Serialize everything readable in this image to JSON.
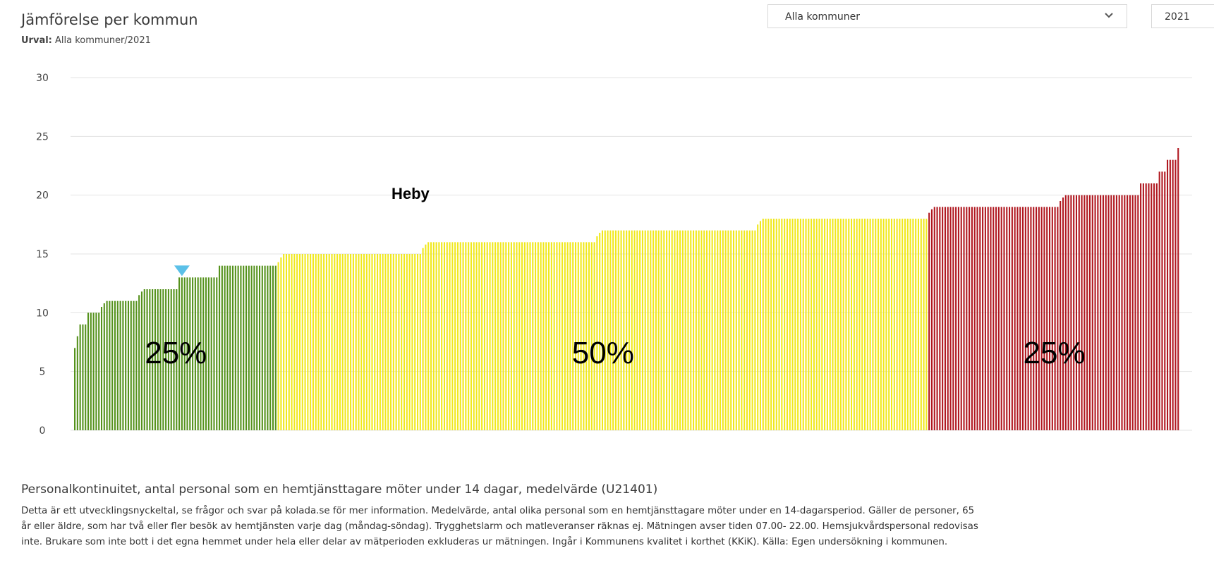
{
  "header": {
    "title": "Jämförelse per kommun",
    "urval_label": "Urval:",
    "urval_value": "Alla kommuner/2021"
  },
  "filters": {
    "municipality_select": "Alla kommuner",
    "year_select": "2021"
  },
  "chart_data": {
    "type": "bar",
    "ylim": [
      0,
      30
    ],
    "yticks": [
      0,
      5,
      10,
      15,
      20,
      25,
      30
    ],
    "grid": true,
    "colors": {
      "low": "#55921c",
      "mid": "#f0e81c",
      "high": "#b0171f",
      "marker": "#5bc0e8"
    },
    "groups": [
      {
        "label": "25%",
        "color_key": "low",
        "values": [
          7,
          8,
          9,
          9,
          9,
          10,
          10,
          10,
          10,
          10,
          10.5,
          10.8,
          11,
          11,
          11,
          11,
          11,
          11,
          11,
          11,
          11,
          11,
          11,
          11,
          11.5,
          11.8,
          12,
          12,
          12,
          12,
          12,
          12,
          12,
          12,
          12,
          12,
          12,
          12,
          12,
          13,
          13,
          13,
          13,
          13,
          13,
          13,
          13,
          13,
          13,
          13,
          13,
          13,
          13,
          13,
          14,
          14,
          14,
          14,
          14,
          14,
          14,
          14,
          14,
          14,
          14,
          14,
          14,
          14,
          14,
          14,
          14,
          14,
          14,
          14,
          14,
          14
        ]
      },
      {
        "label": "50%",
        "color_key": "mid",
        "values": [
          14.3,
          14.7,
          15,
          15,
          15,
          15,
          15,
          15,
          15,
          15,
          15,
          15,
          15,
          15,
          15,
          15,
          15,
          15,
          15,
          15,
          15,
          15,
          15,
          15,
          15,
          15,
          15,
          15,
          15,
          15,
          15,
          15,
          15,
          15,
          15,
          15,
          15,
          15,
          15,
          15,
          15,
          15,
          15,
          15,
          15,
          15,
          15,
          15,
          15,
          15,
          15,
          15,
          15,
          15,
          15.5,
          15.8,
          16,
          16,
          16,
          16,
          16,
          16,
          16,
          16,
          16,
          16,
          16,
          16,
          16,
          16,
          16,
          16,
          16,
          16,
          16,
          16,
          16,
          16,
          16,
          16,
          16,
          16,
          16,
          16,
          16,
          16,
          16,
          16,
          16,
          16,
          16,
          16,
          16,
          16,
          16,
          16,
          16,
          16,
          16,
          16,
          16,
          16,
          16,
          16,
          16,
          16,
          16,
          16,
          16,
          16,
          16,
          16,
          16,
          16,
          16,
          16,
          16,
          16,
          16,
          16.5,
          16.8,
          17,
          17,
          17,
          17,
          17,
          17,
          17,
          17,
          17,
          17,
          17,
          17,
          17,
          17,
          17,
          17,
          17,
          17,
          17,
          17,
          17,
          17,
          17,
          17,
          17,
          17,
          17,
          17,
          17,
          17,
          17,
          17,
          17,
          17,
          17,
          17,
          17,
          17,
          17,
          17,
          17,
          17,
          17,
          17,
          17,
          17,
          17,
          17,
          17,
          17,
          17,
          17,
          17,
          17,
          17,
          17,
          17,
          17,
          17.5,
          17.8,
          18,
          18,
          18,
          18,
          18,
          18,
          18,
          18,
          18,
          18,
          18,
          18,
          18,
          18,
          18,
          18,
          18,
          18,
          18,
          18,
          18,
          18,
          18,
          18,
          18,
          18,
          18,
          18,
          18,
          18,
          18,
          18,
          18,
          18,
          18,
          18,
          18,
          18,
          18,
          18,
          18,
          18,
          18,
          18,
          18,
          18,
          18,
          18,
          18,
          18,
          18,
          18,
          18,
          18,
          18,
          18,
          18,
          18,
          18,
          18,
          18,
          18
        ]
      },
      {
        "label": "25%",
        "color_key": "high",
        "values": [
          18.5,
          18.8,
          19,
          19,
          19,
          19,
          19,
          19,
          19,
          19,
          19,
          19,
          19,
          19,
          19,
          19,
          19,
          19,
          19,
          19,
          19,
          19,
          19,
          19,
          19,
          19,
          19,
          19,
          19,
          19,
          19,
          19,
          19,
          19,
          19,
          19,
          19,
          19,
          19,
          19,
          19,
          19,
          19,
          19,
          19,
          19,
          19,
          19,
          19,
          19.5,
          19.8,
          20,
          20,
          20,
          20,
          20,
          20,
          20,
          20,
          20,
          20,
          20,
          20,
          20,
          20,
          20,
          20,
          20,
          20,
          20,
          20,
          20,
          20,
          20,
          20,
          20,
          20,
          20,
          20,
          21,
          21,
          21,
          21,
          21,
          21,
          21,
          22,
          22,
          22,
          23,
          23,
          23,
          23,
          24
        ]
      }
    ],
    "highlight": {
      "label": "Heby",
      "group": 0,
      "index": 40
    }
  },
  "description": {
    "title": "Personalkontinuitet, antal personal som en hemtjänsttagare möter under 14 dagar, medelvärde (U21401)",
    "line1": "Detta är ett utvecklingsnyckeltal, se frågor och svar på kolada.se för mer information. Medelvärde, antal olika personal som en hemtjänsttagare möter under en 14-dagarsperiod. Gäller de personer, 65",
    "line2": "år eller äldre, som har två eller fler besök av hemtjänsten varje dag (måndag-söndag). Trygghetslarm och matleveranser räknas ej. Mätningen avser tiden 07.00- 22.00. Hemsjukvårdspersonal redovisas",
    "line3": "inte. Brukare som inte bott i det egna hemmet under hela eller delar av mätperioden exkluderas ur mätningen. Ingår i Kommunens kvalitet i korthet (KKiK). Källa: Egen undersökning i kommunen."
  }
}
